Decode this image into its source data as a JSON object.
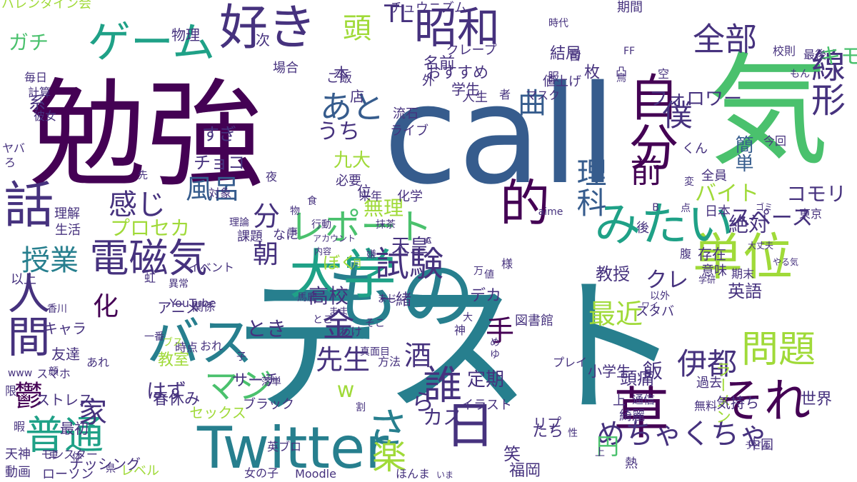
{
  "palette": {
    "dark_purple": "#440154",
    "indigo": "#46327e",
    "blue": "#365c8d",
    "steel_blue": "#277f8e",
    "teal": "#1fa187",
    "green": "#4ac16d",
    "lime": "#a0da39",
    "yellow": "#c8d42a"
  },
  "words": [
    {
      "text": "テスト",
      "color": "#277f8e"
    },
    {
      "text": "call",
      "color": "#365c8d"
    },
    {
      "text": "勉強",
      "color": "#440154"
    },
    {
      "text": "気",
      "color": "#4ac16d"
    },
    {
      "text": "Twitter",
      "color": "#277f8e"
    },
    {
      "text": "自分",
      "color": "#440154"
    },
    {
      "text": "もの",
      "color": "#277f8e"
    },
    {
      "text": "単位",
      "color": "#a0da39"
    },
    {
      "text": "大学",
      "color": "#1fa187"
    },
    {
      "text": "話",
      "color": "#46327e"
    },
    {
      "text": "人間",
      "color": "#46327e"
    },
    {
      "text": "それ",
      "color": "#440154"
    },
    {
      "text": "草",
      "color": "#440154"
    },
    {
      "text": "レポート",
      "color": "#4ac16d"
    },
    {
      "text": "好き",
      "color": "#46327e"
    },
    {
      "text": "昭和",
      "color": "#46327e"
    },
    {
      "text": "ゲーム",
      "color": "#1fa187"
    },
    {
      "text": "電磁気",
      "color": "#46327e"
    },
    {
      "text": "試験",
      "color": "#46327e"
    },
    {
      "text": "みたい",
      "color": "#1fa187"
    },
    {
      "text": "的",
      "color": "#440154"
    },
    {
      "text": "日",
      "color": "#46327e"
    },
    {
      "text": "問題",
      "color": "#a0da39"
    },
    {
      "text": "普通",
      "color": "#1fa187"
    },
    {
      "text": "バス",
      "color": "#277f8e"
    },
    {
      "text": "誰",
      "color": "#46327e"
    },
    {
      "text": "さ",
      "color": "#277f8e"
    },
    {
      "text": "楽",
      "color": "#a0da39"
    },
    {
      "text": "線形",
      "color": "#46327e"
    },
    {
      "text": "全部",
      "color": "#46327e"
    },
    {
      "text": "頭",
      "color": "#a0da39"
    },
    {
      "text": "TL",
      "color": "#46327e"
    },
    {
      "text": "あと",
      "color": "#365c8d"
    },
    {
      "text": "前",
      "color": "#440154"
    },
    {
      "text": "理科",
      "color": "#365c8d"
    },
    {
      "text": "僕",
      "color": "#46327e"
    },
    {
      "text": "伊都",
      "color": "#46327e"
    },
    {
      "text": "最近",
      "color": "#a0da39"
    },
    {
      "text": "めちゃくちゃ",
      "color": "#46327e"
    },
    {
      "text": "マジ",
      "color": "#4ac16d"
    },
    {
      "text": "授業",
      "color": "#277f8e"
    },
    {
      "text": "感じ",
      "color": "#46327e"
    },
    {
      "text": "風呂",
      "color": "#365c8d"
    },
    {
      "text": "曲",
      "color": "#365c8d"
    },
    {
      "text": "鬱",
      "color": "#440154"
    },
    {
      "text": "先生",
      "color": "#46327e"
    },
    {
      "text": "金",
      "color": "#46327e"
    },
    {
      "text": "円",
      "color": "#4ac16d"
    },
    {
      "text": "手",
      "color": "#440154"
    },
    {
      "text": "酒",
      "color": "#46327e"
    },
    {
      "text": "家",
      "color": "#46327e"
    },
    {
      "text": "バイト",
      "color": "#a0da39"
    },
    {
      "text": "コモリ",
      "color": "#46327e"
    },
    {
      "text": "スペース",
      "color": "#46327e"
    },
    {
      "text": "キモ",
      "color": "#4ac16d"
    },
    {
      "text": "ガチ",
      "color": "#4ac16d"
    },
    {
      "text": "分",
      "color": "#46327e"
    },
    {
      "text": "朝",
      "color": "#46327e"
    },
    {
      "text": "化",
      "color": "#440154"
    },
    {
      "text": "はず",
      "color": "#46327e"
    },
    {
      "text": "とき",
      "color": "#46327e"
    },
    {
      "text": "ら",
      "color": "#46327e"
    },
    {
      "text": "w",
      "color": "#a0da39"
    },
    {
      "text": "うち",
      "color": "#46327e"
    },
    {
      "text": "クレ",
      "color": "#46327e"
    },
    {
      "text": "カス",
      "color": "#46327e"
    },
    {
      "text": "高校",
      "color": "#46327e"
    },
    {
      "text": "無理",
      "color": "#a0da39"
    },
    {
      "text": "九大",
      "color": "#a0da39"
    },
    {
      "text": "天皇",
      "color": "#46327e"
    },
    {
      "text": "絶対",
      "color": "#46327e"
    },
    {
      "text": "飯",
      "color": "#46327e"
    },
    {
      "text": "すぎ",
      "color": "#46327e"
    },
    {
      "text": "チョコ",
      "color": "#46327e"
    },
    {
      "text": "フォロワー",
      "color": "#46327e"
    },
    {
      "text": "頭痛",
      "color": "#46327e"
    },
    {
      "text": "簡単",
      "color": "#365c8d"
    },
    {
      "text": "英語",
      "color": "#46327e"
    },
    {
      "text": "教授",
      "color": "#46327e"
    },
    {
      "text": "サーチ",
      "color": "#46327e"
    },
    {
      "text": "デカ",
      "color": "#46327e"
    },
    {
      "text": "ぼく",
      "color": "#a0da39"
    },
    {
      "text": "一緒",
      "color": "#46327e"
    },
    {
      "text": "定期",
      "color": "#46327e"
    },
    {
      "text": "たち",
      "color": "#46327e"
    },
    {
      "text": "春休み",
      "color": "#46327e"
    },
    {
      "text": "笑",
      "color": "#46327e"
    },
    {
      "text": "福岡",
      "color": "#46327e"
    },
    {
      "text": "小学生",
      "color": "#46327e"
    },
    {
      "text": "世界",
      "color": "#46327e"
    },
    {
      "text": "ラーメン",
      "color": "#a0da39"
    },
    {
      "text": "値上げ",
      "color": "#46327e"
    },
    {
      "text": "結局",
      "color": "#46327e"
    },
    {
      "text": "学生",
      "color": "#46327e"
    },
    {
      "text": "物理",
      "color": "#46327e"
    },
    {
      "text": "アニメ",
      "color": "#46327e"
    },
    {
      "text": "キャラ",
      "color": "#46327e"
    },
    {
      "text": "教室",
      "color": "#a0da39"
    },
    {
      "text": "友達",
      "color": "#46327e"
    },
    {
      "text": "スマホ",
      "color": "#46327e"
    },
    {
      "text": "ストレス",
      "color": "#46327e"
    },
    {
      "text": "モンスター",
      "color": "#46327e"
    },
    {
      "text": "ローソン",
      "color": "#46327e"
    },
    {
      "text": "動画",
      "color": "#46327e"
    },
    {
      "text": "天神",
      "color": "#46327e"
    },
    {
      "text": "セックス",
      "color": "#a0da39"
    },
    {
      "text": "イラスト",
      "color": "#46327e"
    },
    {
      "text": "ブラック",
      "color": "#46327e"
    },
    {
      "text": "リプ",
      "color": "#46327e"
    },
    {
      "text": "気持ち",
      "color": "#46327e"
    },
    {
      "text": "綺麗",
      "color": "#46327e"
    },
    {
      "text": "過去",
      "color": "#46327e"
    },
    {
      "text": "上",
      "color": "#46327e"
    },
    {
      "text": "熱",
      "color": "#46327e"
    },
    {
      "text": "図書館",
      "color": "#46327e"
    },
    {
      "text": "ナッシング",
      "color": "#46327e"
    },
    {
      "text": "レベル",
      "color": "#a0da39"
    },
    {
      "text": "YouTube",
      "color": "#46327e"
    },
    {
      "text": "チュウニズム",
      "color": "#46327e"
    },
    {
      "text": "バレンタイン会",
      "color": "#a0da39"
    },
    {
      "text": "期間",
      "color": "#46327e"
    },
    {
      "text": "クレープ",
      "color": "#46327e"
    },
    {
      "text": "おすすめ",
      "color": "#46327e"
    },
    {
      "text": "名前",
      "color": "#46327e"
    },
    {
      "text": "外",
      "color": "#46327e"
    },
    {
      "text": "人生",
      "color": "#46327e"
    },
    {
      "text": "最後",
      "color": "#46327e"
    },
    {
      "text": "校則",
      "color": "#46327e"
    },
    {
      "text": "マスク",
      "color": "#46327e"
    },
    {
      "text": "大丈夫",
      "color": "#46327e"
    },
    {
      "text": "毎日",
      "color": "#46327e"
    },
    {
      "text": "計算",
      "color": "#46327e"
    },
    {
      "text": "彼女",
      "color": "#46327e"
    },
    {
      "text": "対象",
      "color": "#46327e"
    },
    {
      "text": "理論",
      "color": "#46327e"
    },
    {
      "text": "理解",
      "color": "#46327e"
    },
    {
      "text": "生活",
      "color": "#46327e"
    },
    {
      "text": "課題",
      "color": "#46327e"
    },
    {
      "text": "なに",
      "color": "#46327e"
    },
    {
      "text": "内容",
      "color": "#46327e"
    },
    {
      "text": "イベント",
      "color": "#46327e"
    },
    {
      "text": "アカウント",
      "color": "#46327e"
    },
    {
      "text": "行動",
      "color": "#46327e"
    },
    {
      "text": "以上",
      "color": "#46327e"
    },
    {
      "text": "東京",
      "color": "#46327e"
    },
    {
      "text": "中国",
      "color": "#46327e"
    },
    {
      "text": "日本",
      "color": "#46327e"
    },
    {
      "text": "存在",
      "color": "#46327e"
    },
    {
      "text": "意味",
      "color": "#46327e"
    },
    {
      "text": "全員",
      "color": "#46327e"
    },
    {
      "text": "今回",
      "color": "#46327e"
    },
    {
      "text": "場合",
      "color": "#46327e"
    },
    {
      "text": "流石",
      "color": "#46327e"
    },
    {
      "text": "ライブ",
      "color": "#46327e"
    },
    {
      "text": "必要",
      "color": "#46327e"
    },
    {
      "text": "化学",
      "color": "#46327e"
    },
    {
      "text": "来年",
      "color": "#46327e"
    },
    {
      "text": "時点",
      "color": "#46327e"
    },
    {
      "text": "関係",
      "color": "#46327e"
    },
    {
      "text": "最初",
      "color": "#46327e"
    },
    {
      "text": "おれ",
      "color": "#46327e"
    },
    {
      "text": "あれ",
      "color": "#46327e"
    },
    {
      "text": "わけ",
      "color": "#46327e"
    },
    {
      "text": "方法",
      "color": "#46327e"
    },
    {
      "text": "通信",
      "color": "#46327e"
    },
    {
      "text": "無料",
      "color": "#46327e"
    },
    {
      "text": "英ブロ",
      "color": "#46327e"
    },
    {
      "text": "Moodle",
      "color": "#46327e"
    },
    {
      "text": "いま",
      "color": "#46327e"
    },
    {
      "text": "ほんま",
      "color": "#46327e"
    },
    {
      "text": "女の子",
      "color": "#46327e"
    },
    {
      "text": "プレイ",
      "color": "#46327e"
    },
    {
      "text": "うどん",
      "color": "#46327e"
    },
    {
      "text": "スタバ",
      "color": "#46327e"
    },
    {
      "text": "ワイ",
      "color": "#46327e"
    },
    {
      "text": "学研",
      "color": "#46327e"
    },
    {
      "text": "やる気",
      "color": "#46327e"
    },
    {
      "text": "期末",
      "color": "#46327e"
    },
    {
      "text": "ゴミ",
      "color": "#46327e"
    },
    {
      "text": "プロセカ",
      "color": "#a0da39"
    },
    {
      "text": "ブス",
      "color": "#a0da39"
    },
    {
      "text": "ヤバ",
      "color": "#46327e"
    },
    {
      "text": "系",
      "color": "#46327e"
    },
    {
      "text": "ろ",
      "color": "#46327e"
    },
    {
      "text": "ご飯",
      "color": "#46327e"
    },
    {
      "text": "本",
      "color": "#46327e"
    },
    {
      "text": "夜",
      "color": "#46327e"
    },
    {
      "text": "次",
      "color": "#46327e"
    },
    {
      "text": "店",
      "color": "#46327e"
    },
    {
      "text": "者",
      "color": "#46327e"
    },
    {
      "text": "服",
      "color": "#46327e"
    },
    {
      "text": "凸",
      "color": "#46327e"
    },
    {
      "text": "鳥",
      "color": "#46327e"
    },
    {
      "text": "空",
      "color": "#46327e"
    },
    {
      "text": "枚",
      "color": "#46327e"
    },
    {
      "text": "音",
      "color": "#46327e"
    },
    {
      "text": "もん",
      "color": "#46327e"
    },
    {
      "text": "くん",
      "color": "#46327e"
    },
    {
      "text": "変",
      "color": "#46327e"
    },
    {
      "text": "点",
      "color": "#46327e"
    },
    {
      "text": "後",
      "color": "#46327e"
    },
    {
      "text": "腹",
      "color": "#46327e"
    },
    {
      "text": "位",
      "color": "#46327e"
    },
    {
      "text": "様",
      "color": "#46327e"
    },
    {
      "text": "万",
      "color": "#46327e"
    },
    {
      "text": "大",
      "color": "#46327e"
    },
    {
      "text": "虹",
      "color": "#46327e"
    },
    {
      "text": "先",
      "color": "#46327e"
    },
    {
      "text": "食",
      "color": "#46327e"
    },
    {
      "text": "事",
      "color": "#46327e"
    },
    {
      "text": "物",
      "color": "#46327e"
    },
    {
      "text": "子",
      "color": "#46327e"
    },
    {
      "text": "顔",
      "color": "#46327e"
    },
    {
      "text": "限",
      "color": "#46327e"
    },
    {
      "text": "暇",
      "color": "#46327e"
    },
    {
      "text": "車",
      "color": "#46327e"
    },
    {
      "text": "体",
      "color": "#46327e"
    },
    {
      "text": "県",
      "color": "#46327e"
    },
    {
      "text": "性",
      "color": "#46327e"
    },
    {
      "text": "神",
      "color": "#46327e"
    },
    {
      "text": "め",
      "color": "#46327e"
    },
    {
      "text": "ゆ",
      "color": "#46327e"
    },
    {
      "text": "値",
      "color": "#46327e"
    },
    {
      "text": "そこ",
      "color": "#46327e"
    },
    {
      "text": "とこ",
      "color": "#46327e"
    },
    {
      "text": "まま",
      "color": "#46327e"
    },
    {
      "text": "まじ",
      "color": "#46327e"
    },
    {
      "text": "抹茶",
      "color": "#46327e"
    },
    {
      "text": "嫌",
      "color": "#46327e"
    },
    {
      "text": "月",
      "color": "#a0da39"
    },
    {
      "text": "異常",
      "color": "#46327e"
    },
    {
      "text": "香川",
      "color": "#46327e"
    },
    {
      "text": "一番",
      "color": "#46327e"
    },
    {
      "text": "割",
      "color": "#46327e"
    },
    {
      "text": "落単",
      "color": "#46327e"
    },
    {
      "text": "馬鹿",
      "color": "#46327e"
    },
    {
      "text": "真面目",
      "color": "#46327e"
    },
    {
      "text": "時代",
      "color": "#46327e"
    },
    {
      "text": "上",
      "color": "#46327e"
    },
    {
      "text": "www",
      "color": "#46327e"
    },
    {
      "text": "以外",
      "color": "#46327e"
    },
    {
      "text": "aime",
      "color": "#46327e"
    },
    {
      "text": "FF",
      "color": "#46327e"
    },
    {
      "text": "B",
      "color": "#46327e"
    },
    {
      "text": "A",
      "color": "#46327e"
    },
    {
      "text": "C",
      "color": "#46327e"
    }
  ]
}
